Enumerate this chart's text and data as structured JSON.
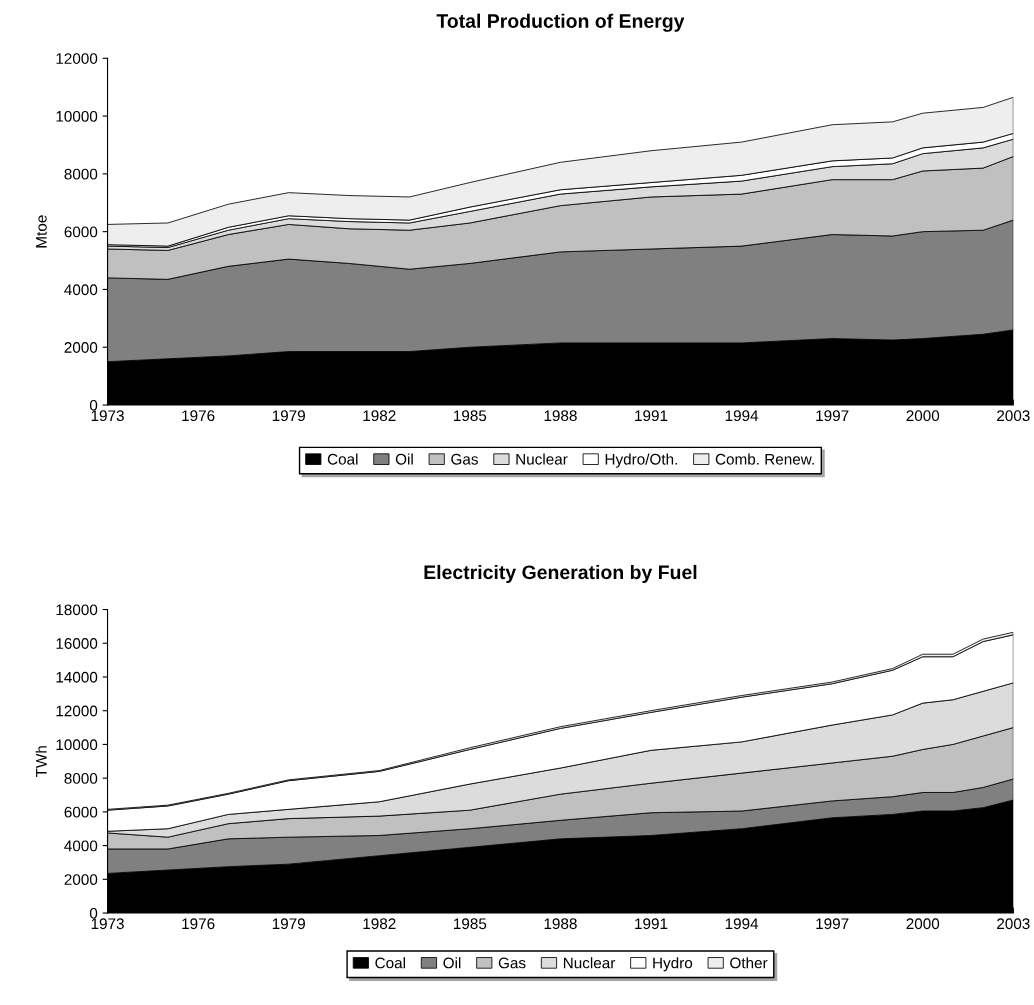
{
  "chart_data": [
    {
      "type": "area",
      "stacked": true,
      "title": "Total Production of Energy",
      "ylabel": "Mtoe",
      "x": [
        1973,
        1975,
        1977,
        1979,
        1981,
        1983,
        1985,
        1988,
        1991,
        1994,
        1997,
        1999,
        2000,
        2002,
        2003
      ],
      "xlim": [
        1973,
        2003
      ],
      "xticks": [
        1973,
        1976,
        1979,
        1982,
        1985,
        1988,
        1991,
        1994,
        1997,
        2000,
        2003
      ],
      "ylim": [
        0,
        12000
      ],
      "yticks": [
        0,
        2000,
        4000,
        6000,
        8000,
        10000,
        12000
      ],
      "grid": false,
      "legend": "bottom",
      "series": [
        {
          "name": "Coal",
          "color": "#000000",
          "values": [
            1500,
            1600,
            1700,
            1850,
            1850,
            1850,
            2000,
            2150,
            2150,
            2150,
            2300,
            2250,
            2300,
            2450,
            2600
          ]
        },
        {
          "name": "Oil",
          "color": "#808080",
          "values": [
            2900,
            2750,
            3100,
            3200,
            3050,
            2850,
            2900,
            3150,
            3250,
            3350,
            3600,
            3600,
            3700,
            3600,
            3800
          ]
        },
        {
          "name": "Gas",
          "color": "#c0c0c0",
          "values": [
            1000,
            1000,
            1100,
            1200,
            1200,
            1350,
            1400,
            1600,
            1800,
            1800,
            1900,
            1950,
            2100,
            2150,
            2200
          ]
        },
        {
          "name": "Nuclear",
          "color": "#dcdcdc",
          "values": [
            100,
            100,
            150,
            200,
            250,
            250,
            400,
            400,
            350,
            450,
            450,
            550,
            600,
            700,
            600
          ]
        },
        {
          "name": "Hydro/Oth.",
          "color": "#ffffff",
          "values": [
            50,
            50,
            100,
            100,
            100,
            100,
            150,
            150,
            150,
            200,
            200,
            200,
            200,
            200,
            200
          ]
        },
        {
          "name": "Comb. Renew.",
          "color": "#eeeeee",
          "values": [
            700,
            800,
            800,
            800,
            800,
            800,
            850,
            950,
            1100,
            1150,
            1250,
            1250,
            1200,
            1200,
            1250
          ]
        }
      ]
    },
    {
      "type": "area",
      "stacked": true,
      "title": "Electricity Generation by Fuel",
      "ylabel": "TWh",
      "x": [
        1973,
        1975,
        1977,
        1979,
        1982,
        1985,
        1988,
        1991,
        1994,
        1997,
        1999,
        2000,
        2001,
        2002,
        2003
      ],
      "xlim": [
        1973,
        2003
      ],
      "xticks": [
        1973,
        1976,
        1979,
        1982,
        1985,
        1988,
        1991,
        1994,
        1997,
        2000,
        2003
      ],
      "ylim": [
        0,
        18000
      ],
      "yticks": [
        0,
        2000,
        4000,
        6000,
        8000,
        10000,
        12000,
        14000,
        16000,
        18000
      ],
      "grid": false,
      "legend": "bottom",
      "series": [
        {
          "name": "Coal",
          "color": "#000000",
          "values": [
            2350,
            2550,
            2750,
            2900,
            3400,
            3900,
            4400,
            4600,
            5000,
            5650,
            5850,
            6050,
            6050,
            6250,
            6700
          ]
        },
        {
          "name": "Oil",
          "color": "#808080",
          "values": [
            1450,
            1250,
            1650,
            1600,
            1200,
            1100,
            1100,
            1350,
            1050,
            1000,
            1050,
            1100,
            1100,
            1200,
            1250
          ]
        },
        {
          "name": "Gas",
          "color": "#c0c0c0",
          "values": [
            950,
            700,
            900,
            1100,
            1150,
            1100,
            1550,
            1750,
            2250,
            2250,
            2400,
            2550,
            2850,
            3050,
            3050
          ]
        },
        {
          "name": "Nuclear",
          "color": "#dcdcdc",
          "values": [
            100,
            500,
            550,
            550,
            850,
            1550,
            1550,
            1950,
            1850,
            2250,
            2450,
            2750,
            2650,
            2650,
            2650
          ]
        },
        {
          "name": "Hydro",
          "color": "#ffffff",
          "values": [
            1250,
            1350,
            1200,
            1700,
            1800,
            2050,
            2350,
            2250,
            2650,
            2450,
            2650,
            2750,
            2550,
            2950,
            2850
          ]
        },
        {
          "name": "Other",
          "color": "#eeeeee",
          "values": [
            50,
            50,
            50,
            50,
            50,
            100,
            100,
            100,
            100,
            100,
            100,
            150,
            150,
            150,
            150
          ]
        }
      ]
    }
  ]
}
